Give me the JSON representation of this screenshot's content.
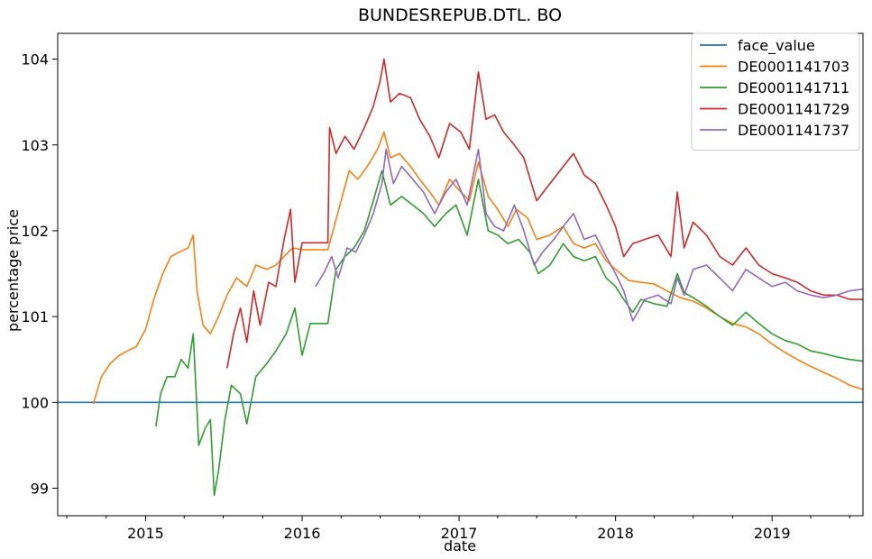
{
  "chart_data": {
    "type": "line",
    "title": "BUNDESREPUB.DTL. BO",
    "xlabel": "date",
    "ylabel": "percentage price",
    "x_tick_labels": [
      "2015",
      "2016",
      "2017",
      "2018",
      "2019"
    ],
    "y_tick_labels": [
      "99",
      "100",
      "101",
      "102",
      "103",
      "104"
    ],
    "xlim": [
      "2014-06-10",
      "2019-08-01"
    ],
    "ylim": [
      98.68,
      104.3
    ],
    "grid": false,
    "legend_position": "top-right",
    "colors": {
      "face_value": "#1f77b4",
      "DE0001141703": "#ff7f0e",
      "DE0001141711": "#2ca02c",
      "DE0001141729": "#d62728",
      "DE0001141737": "#9467bd"
    },
    "series": [
      {
        "name": "face_value",
        "points": [
          [
            "2014-06-10",
            100.0
          ],
          [
            "2019-08-01",
            100.0
          ]
        ]
      },
      {
        "name": "DE0001141703",
        "points": [
          [
            "2014-09-01",
            99.98
          ],
          [
            "2014-09-20",
            100.3
          ],
          [
            "2014-10-10",
            100.45
          ],
          [
            "2014-11-01",
            100.55
          ],
          [
            "2014-11-20",
            100.6
          ],
          [
            "2014-12-10",
            100.65
          ],
          [
            "2015-01-01",
            100.85
          ],
          [
            "2015-01-20",
            101.2
          ],
          [
            "2015-02-10",
            101.5
          ],
          [
            "2015-03-01",
            101.7
          ],
          [
            "2015-03-20",
            101.75
          ],
          [
            "2015-04-10",
            101.8
          ],
          [
            "2015-04-22",
            101.95
          ],
          [
            "2015-05-01",
            101.3
          ],
          [
            "2015-05-15",
            100.9
          ],
          [
            "2015-06-01",
            100.8
          ],
          [
            "2015-06-20",
            101.0
          ],
          [
            "2015-07-10",
            101.25
          ],
          [
            "2015-08-01",
            101.45
          ],
          [
            "2015-08-25",
            101.35
          ],
          [
            "2015-09-15",
            101.6
          ],
          [
            "2015-10-10",
            101.55
          ],
          [
            "2015-11-01",
            101.6
          ],
          [
            "2015-11-20",
            101.7
          ],
          [
            "2015-12-10",
            101.8
          ],
          [
            "2016-01-01",
            101.78
          ],
          [
            "2016-02-01",
            101.78
          ],
          [
            "2016-03-01",
            101.78
          ],
          [
            "2016-04-01",
            102.35
          ],
          [
            "2016-04-20",
            102.7
          ],
          [
            "2016-05-10",
            102.6
          ],
          [
            "2016-06-01",
            102.75
          ],
          [
            "2016-06-25",
            102.95
          ],
          [
            "2016-07-10",
            103.15
          ],
          [
            "2016-07-25",
            102.85
          ],
          [
            "2016-08-15",
            102.9
          ],
          [
            "2016-09-10",
            102.75
          ],
          [
            "2016-10-01",
            102.6
          ],
          [
            "2016-10-25",
            102.45
          ],
          [
            "2016-11-15",
            102.3
          ],
          [
            "2016-12-10",
            102.6
          ],
          [
            "2017-01-05",
            102.45
          ],
          [
            "2017-01-25",
            102.35
          ],
          [
            "2017-02-15",
            102.8
          ],
          [
            "2017-03-10",
            102.4
          ],
          [
            "2017-04-01",
            102.25
          ],
          [
            "2017-04-25",
            102.05
          ],
          [
            "2017-05-15",
            102.25
          ],
          [
            "2017-06-10",
            102.15
          ],
          [
            "2017-07-01",
            101.9
          ],
          [
            "2017-08-01",
            101.95
          ],
          [
            "2017-09-01",
            102.05
          ],
          [
            "2017-09-25",
            101.85
          ],
          [
            "2017-10-20",
            101.8
          ],
          [
            "2017-11-15",
            101.85
          ],
          [
            "2017-12-10",
            101.65
          ],
          [
            "2018-01-01",
            101.55
          ],
          [
            "2018-02-01",
            101.42
          ],
          [
            "2018-03-01",
            101.4
          ],
          [
            "2018-04-01",
            101.38
          ],
          [
            "2018-05-01",
            101.3
          ],
          [
            "2018-06-01",
            101.22
          ],
          [
            "2018-07-01",
            101.18
          ],
          [
            "2018-08-01",
            101.1
          ],
          [
            "2018-09-01",
            101.0
          ],
          [
            "2018-10-01",
            100.92
          ],
          [
            "2018-11-01",
            100.88
          ],
          [
            "2018-12-01",
            100.8
          ],
          [
            "2019-01-01",
            100.68
          ],
          [
            "2019-02-01",
            100.58
          ],
          [
            "2019-03-01",
            100.5
          ],
          [
            "2019-04-01",
            100.42
          ],
          [
            "2019-05-01",
            100.35
          ],
          [
            "2019-06-01",
            100.28
          ],
          [
            "2019-07-01",
            100.2
          ],
          [
            "2019-08-01",
            100.15
          ]
        ]
      },
      {
        "name": "DE0001141711",
        "points": [
          [
            "2015-01-25",
            99.72
          ],
          [
            "2015-02-05",
            100.1
          ],
          [
            "2015-02-20",
            100.3
          ],
          [
            "2015-03-10",
            100.3
          ],
          [
            "2015-03-25",
            100.5
          ],
          [
            "2015-04-10",
            100.4
          ],
          [
            "2015-04-22",
            100.8
          ],
          [
            "2015-05-05",
            99.5
          ],
          [
            "2015-05-20",
            99.7
          ],
          [
            "2015-06-01",
            99.8
          ],
          [
            "2015-06-10",
            98.92
          ],
          [
            "2015-06-20",
            99.2
          ],
          [
            "2015-07-05",
            99.8
          ],
          [
            "2015-07-20",
            100.2
          ],
          [
            "2015-08-10",
            100.1
          ],
          [
            "2015-08-25",
            99.75
          ],
          [
            "2015-09-15",
            100.3
          ],
          [
            "2015-10-10",
            100.45
          ],
          [
            "2015-11-01",
            100.6
          ],
          [
            "2015-11-25",
            100.8
          ],
          [
            "2015-12-15",
            101.1
          ],
          [
            "2016-01-01",
            100.55
          ],
          [
            "2016-01-20",
            100.92
          ],
          [
            "2016-02-15",
            100.92
          ],
          [
            "2016-03-01",
            100.92
          ],
          [
            "2016-03-20",
            101.55
          ],
          [
            "2016-04-10",
            101.7
          ],
          [
            "2016-05-01",
            101.8
          ],
          [
            "2016-05-25",
            102.0
          ],
          [
            "2016-06-15",
            102.35
          ],
          [
            "2016-07-05",
            102.7
          ],
          [
            "2016-07-25",
            102.3
          ],
          [
            "2016-08-20",
            102.4
          ],
          [
            "2016-09-15",
            102.3
          ],
          [
            "2016-10-10",
            102.2
          ],
          [
            "2016-11-05",
            102.05
          ],
          [
            "2016-12-01",
            102.2
          ],
          [
            "2016-12-25",
            102.3
          ],
          [
            "2017-01-20",
            101.95
          ],
          [
            "2017-02-15",
            102.6
          ],
          [
            "2017-03-10",
            102.0
          ],
          [
            "2017-04-01",
            101.95
          ],
          [
            "2017-04-25",
            101.85
          ],
          [
            "2017-05-20",
            101.9
          ],
          [
            "2017-06-15",
            101.75
          ],
          [
            "2017-07-05",
            101.5
          ],
          [
            "2017-08-01",
            101.6
          ],
          [
            "2017-09-01",
            101.85
          ],
          [
            "2017-09-25",
            101.7
          ],
          [
            "2017-10-20",
            101.65
          ],
          [
            "2017-11-15",
            101.7
          ],
          [
            "2017-12-10",
            101.45
          ],
          [
            "2018-01-01",
            101.35
          ],
          [
            "2018-01-20",
            101.2
          ],
          [
            "2018-02-10",
            101.05
          ],
          [
            "2018-03-01",
            101.2
          ],
          [
            "2018-04-01",
            101.15
          ],
          [
            "2018-05-01",
            101.12
          ],
          [
            "2018-05-25",
            101.5
          ],
          [
            "2018-06-10",
            101.28
          ],
          [
            "2018-07-01",
            101.22
          ],
          [
            "2018-08-01",
            101.12
          ],
          [
            "2018-09-01",
            101.0
          ],
          [
            "2018-10-01",
            100.9
          ],
          [
            "2018-11-01",
            101.05
          ],
          [
            "2018-12-01",
            100.92
          ],
          [
            "2019-01-01",
            100.8
          ],
          [
            "2019-02-01",
            100.72
          ],
          [
            "2019-03-01",
            100.68
          ],
          [
            "2019-04-01",
            100.6
          ],
          [
            "2019-05-01",
            100.57
          ],
          [
            "2019-06-01",
            100.53
          ],
          [
            "2019-07-01",
            100.5
          ],
          [
            "2019-08-01",
            100.48
          ]
        ]
      },
      {
        "name": "DE0001141729",
        "points": [
          [
            "2015-07-10",
            100.4
          ],
          [
            "2015-07-25",
            100.8
          ],
          [
            "2015-08-10",
            101.1
          ],
          [
            "2015-08-25",
            100.7
          ],
          [
            "2015-09-10",
            101.3
          ],
          [
            "2015-09-25",
            100.9
          ],
          [
            "2015-10-15",
            101.4
          ],
          [
            "2015-11-01",
            101.35
          ],
          [
            "2015-11-20",
            101.9
          ],
          [
            "2015-12-05",
            102.25
          ],
          [
            "2015-12-15",
            101.4
          ],
          [
            "2016-01-01",
            101.86
          ],
          [
            "2016-02-01",
            101.86
          ],
          [
            "2016-03-01",
            101.86
          ],
          [
            "2016-03-05",
            103.2
          ],
          [
            "2016-03-20",
            102.9
          ],
          [
            "2016-04-10",
            103.1
          ],
          [
            "2016-05-01",
            102.95
          ],
          [
            "2016-05-25",
            103.2
          ],
          [
            "2016-06-15",
            103.45
          ],
          [
            "2016-07-01",
            103.75
          ],
          [
            "2016-07-10",
            104.0
          ],
          [
            "2016-07-25",
            103.5
          ],
          [
            "2016-08-15",
            103.6
          ],
          [
            "2016-09-10",
            103.55
          ],
          [
            "2016-10-01",
            103.3
          ],
          [
            "2016-10-25",
            103.1
          ],
          [
            "2016-11-15",
            102.85
          ],
          [
            "2016-12-10",
            103.25
          ],
          [
            "2017-01-05",
            103.15
          ],
          [
            "2017-01-25",
            102.95
          ],
          [
            "2017-02-15",
            103.85
          ],
          [
            "2017-03-05",
            103.3
          ],
          [
            "2017-03-25",
            103.35
          ],
          [
            "2017-04-15",
            103.15
          ],
          [
            "2017-05-10",
            103.0
          ],
          [
            "2017-06-01",
            102.85
          ],
          [
            "2017-07-01",
            102.35
          ],
          [
            "2017-08-01",
            102.55
          ],
          [
            "2017-09-01",
            102.75
          ],
          [
            "2017-09-25",
            102.9
          ],
          [
            "2017-10-20",
            102.65
          ],
          [
            "2017-11-15",
            102.55
          ],
          [
            "2017-12-10",
            102.3
          ],
          [
            "2018-01-01",
            102.05
          ],
          [
            "2018-01-20",
            101.7
          ],
          [
            "2018-02-10",
            101.85
          ],
          [
            "2018-03-10",
            101.9
          ],
          [
            "2018-04-10",
            101.95
          ],
          [
            "2018-05-10",
            101.7
          ],
          [
            "2018-05-25",
            102.45
          ],
          [
            "2018-06-10",
            101.8
          ],
          [
            "2018-07-01",
            102.1
          ],
          [
            "2018-08-01",
            101.95
          ],
          [
            "2018-09-01",
            101.7
          ],
          [
            "2018-10-01",
            101.6
          ],
          [
            "2018-11-01",
            101.8
          ],
          [
            "2018-12-01",
            101.6
          ],
          [
            "2019-01-01",
            101.5
          ],
          [
            "2019-02-01",
            101.45
          ],
          [
            "2019-03-01",
            101.4
          ],
          [
            "2019-04-01",
            101.3
          ],
          [
            "2019-05-01",
            101.25
          ],
          [
            "2019-06-01",
            101.25
          ],
          [
            "2019-07-01",
            101.2
          ],
          [
            "2019-08-01",
            101.2
          ]
        ]
      },
      {
        "name": "DE0001141737",
        "points": [
          [
            "2016-02-01",
            101.35
          ],
          [
            "2016-02-20",
            101.5
          ],
          [
            "2016-03-10",
            101.7
          ],
          [
            "2016-03-25",
            101.45
          ],
          [
            "2016-04-15",
            101.8
          ],
          [
            "2016-05-05",
            101.75
          ],
          [
            "2016-05-25",
            101.95
          ],
          [
            "2016-06-15",
            102.2
          ],
          [
            "2016-07-05",
            102.55
          ],
          [
            "2016-07-15",
            102.95
          ],
          [
            "2016-08-01",
            102.55
          ],
          [
            "2016-08-20",
            102.75
          ],
          [
            "2016-09-15",
            102.6
          ],
          [
            "2016-10-10",
            102.45
          ],
          [
            "2016-11-05",
            102.2
          ],
          [
            "2016-12-01",
            102.45
          ],
          [
            "2016-12-25",
            102.6
          ],
          [
            "2017-01-20",
            102.3
          ],
          [
            "2017-02-15",
            102.95
          ],
          [
            "2017-03-05",
            102.2
          ],
          [
            "2017-03-25",
            102.05
          ],
          [
            "2017-04-15",
            102.0
          ],
          [
            "2017-05-10",
            102.3
          ],
          [
            "2017-06-01",
            102.0
          ],
          [
            "2017-06-25",
            101.6
          ],
          [
            "2017-07-15",
            101.75
          ],
          [
            "2017-08-10",
            101.9
          ],
          [
            "2017-09-01",
            102.05
          ],
          [
            "2017-09-25",
            102.2
          ],
          [
            "2017-10-20",
            101.9
          ],
          [
            "2017-11-15",
            101.95
          ],
          [
            "2017-12-10",
            101.7
          ],
          [
            "2018-01-01",
            101.5
          ],
          [
            "2018-01-20",
            101.3
          ],
          [
            "2018-02-10",
            100.95
          ],
          [
            "2018-03-10",
            101.2
          ],
          [
            "2018-04-10",
            101.25
          ],
          [
            "2018-05-10",
            101.15
          ],
          [
            "2018-05-25",
            101.45
          ],
          [
            "2018-06-10",
            101.25
          ],
          [
            "2018-07-01",
            101.55
          ],
          [
            "2018-08-01",
            101.6
          ],
          [
            "2018-09-01",
            101.45
          ],
          [
            "2018-10-01",
            101.3
          ],
          [
            "2018-11-01",
            101.55
          ],
          [
            "2018-12-01",
            101.45
          ],
          [
            "2019-01-01",
            101.35
          ],
          [
            "2019-02-01",
            101.4
          ],
          [
            "2019-03-01",
            101.3
          ],
          [
            "2019-04-01",
            101.25
          ],
          [
            "2019-05-01",
            101.22
          ],
          [
            "2019-06-01",
            101.25
          ],
          [
            "2019-07-01",
            101.3
          ],
          [
            "2019-08-01",
            101.32
          ]
        ]
      }
    ]
  }
}
